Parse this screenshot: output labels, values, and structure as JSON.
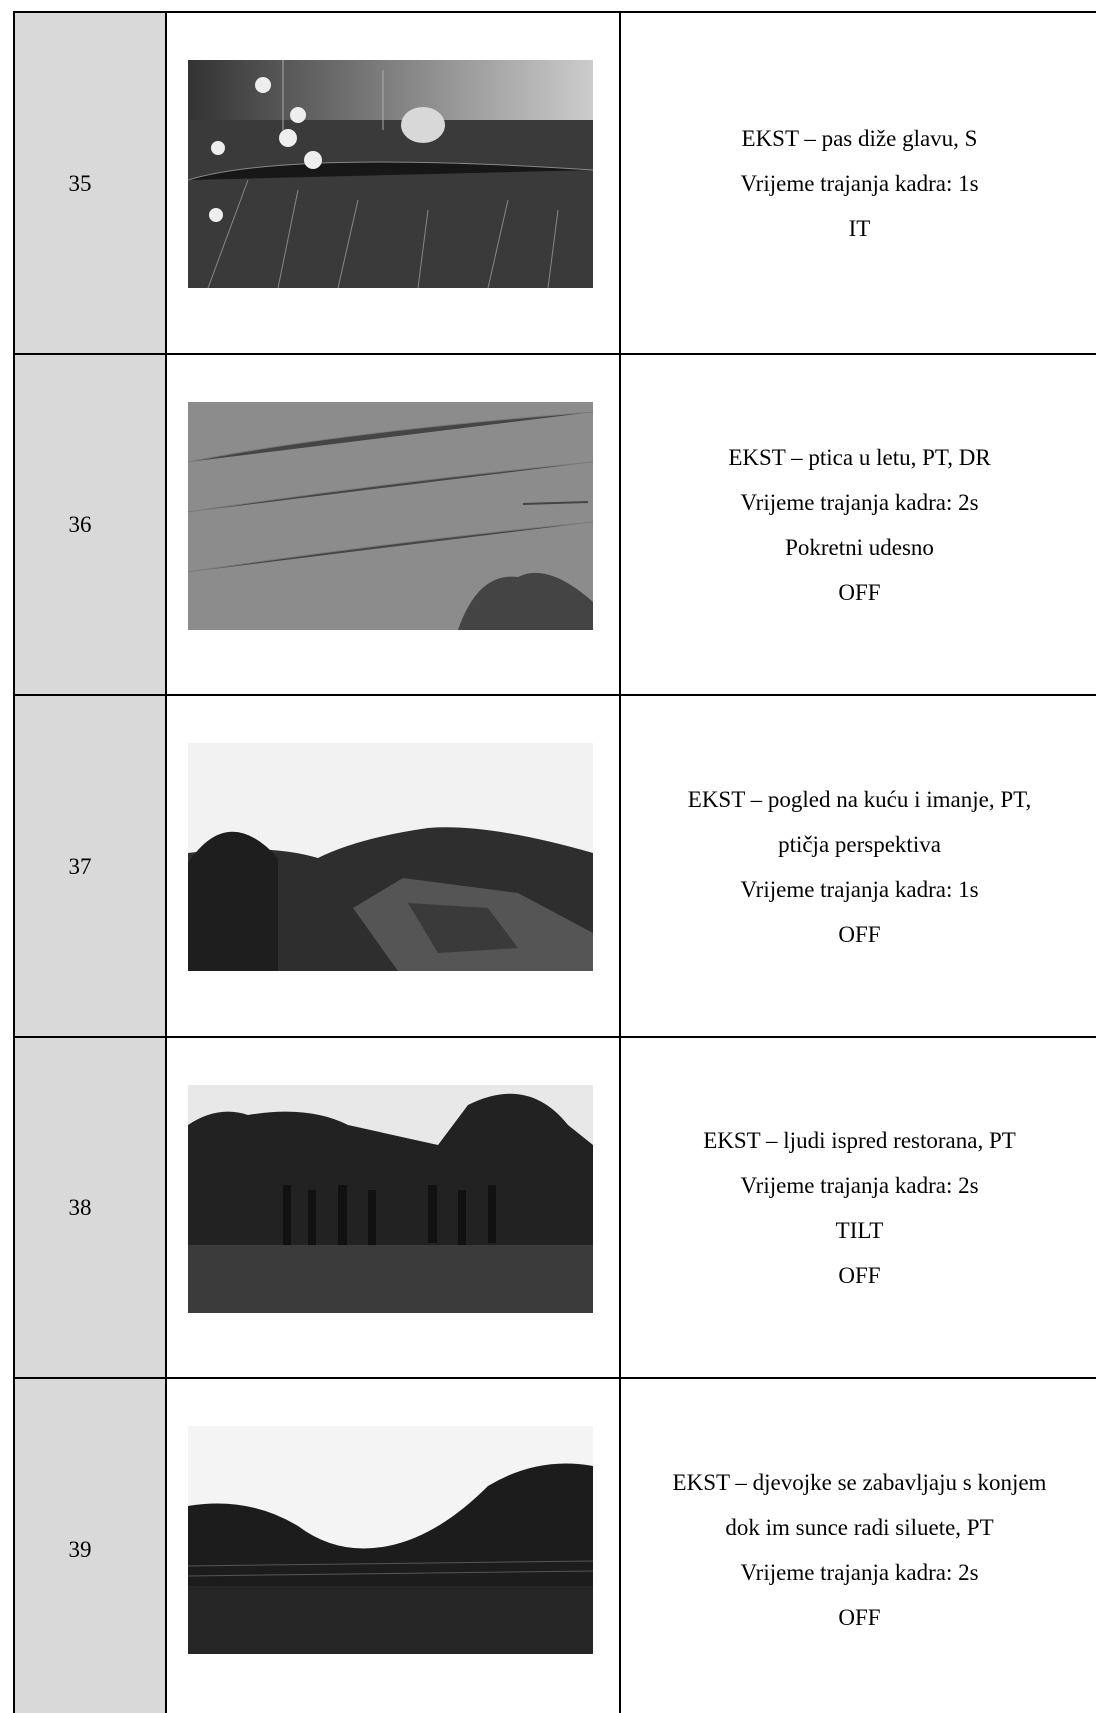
{
  "table": {
    "rows": [
      {
        "number": "35",
        "lines": [
          "EKST – pas diže glavu, S",
          "Vrijeme trajanja kadra: 1s",
          "IT"
        ]
      },
      {
        "number": "36",
        "lines": [
          "EKST – ptica u letu, PT, DR",
          "Vrijeme trajanja kadra: 2s",
          "Pokretni udesno",
          "OFF"
        ]
      },
      {
        "number": "37",
        "lines": [
          "EKST – pogled na kuću i imanje, PT,",
          "ptičja perspektiva",
          "Vrijeme trajanja kadra: 1s",
          "OFF"
        ]
      },
      {
        "number": "38",
        "lines": [
          "EKST – ljudi ispred restorana, PT",
          "Vrijeme trajanja kadra: 2s",
          "TILT",
          "OFF"
        ]
      },
      {
        "number": "39",
        "lines": [
          "EKST – djevojke se zabavljaju s konjem",
          "dok im sunce radi siluete, PT",
          "Vrijeme trajanja kadra: 2s",
          "OFF"
        ]
      }
    ]
  }
}
